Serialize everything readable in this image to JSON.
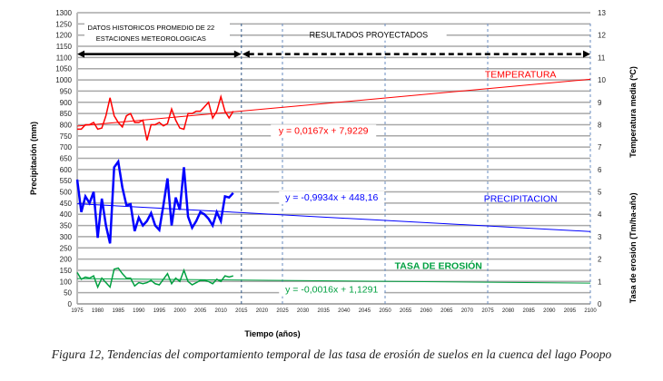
{
  "chart_data": {
    "type": "line",
    "xlabel": "Tiempo (años)",
    "ylabel": "Precipitación (mm)",
    "y2label_top": "Temperatura media (ºC)",
    "y2label_bottom": "Tasa de erosión (Tm/ha-año)",
    "xlim": [
      1975,
      2100
    ],
    "ylim": [
      0,
      1300
    ],
    "y2lim": [
      0,
      13
    ],
    "x_ticks": [
      1975,
      1980,
      1985,
      1990,
      1995,
      2000,
      2005,
      2010,
      2015,
      2020,
      2025,
      2030,
      2035,
      2040,
      2045,
      2050,
      2055,
      2060,
      2065,
      2070,
      2075,
      2080,
      2085,
      2090,
      2095,
      2100
    ],
    "y_ticks": [
      0,
      50,
      100,
      150,
      200,
      250,
      300,
      350,
      400,
      450,
      500,
      550,
      600,
      650,
      700,
      750,
      800,
      850,
      900,
      950,
      1000,
      1050,
      1100,
      1150,
      1200,
      1250,
      1300
    ],
    "y2_ticks": [
      0,
      1,
      2,
      3,
      4,
      5,
      6,
      7,
      8,
      9,
      10,
      11,
      12,
      13
    ],
    "projection_lines": [
      2015,
      2025,
      2050,
      2075,
      2100
    ],
    "annotations": {
      "historic": "DATOS HISTORICOS PROMEDIO DE 22 ESTACIONES METEOROLOGICAS",
      "historic_line1": "DATOS HISTORICOS PROMEDIO DE 22",
      "historic_line2": "ESTACIONES METEOROLOGICAS",
      "projected": "RESULTADOS PROYECTADOS"
    },
    "x_years_start": 1975,
    "series": [
      {
        "name": "TEMPERATURA",
        "axis": "right",
        "color": "#ff0000",
        "equation": "y = 0,0167x + 7,9229",
        "trend": {
          "slope": 0.0167,
          "intercept": 7.9229
        },
        "values": [
          7.8,
          7.8,
          8.0,
          8.0,
          8.1,
          7.8,
          7.85,
          8.4,
          9.2,
          8.4,
          8.1,
          7.9,
          8.4,
          8.5,
          8.1,
          8.1,
          8.2,
          7.3,
          8.0,
          8.0,
          8.1,
          7.95,
          8.05,
          8.7,
          8.2,
          7.85,
          7.8,
          8.5,
          8.5,
          8.6,
          8.6,
          8.8,
          9.0,
          8.3,
          8.6,
          9.25,
          8.6,
          8.3,
          8.6
        ]
      },
      {
        "name": "PRECIPITACION",
        "axis": "left",
        "color": "#0000ff",
        "equation": "y = -0,9934x + 448,16",
        "trend": {
          "slope": -0.9934,
          "intercept": 448.16
        },
        "values": [
          555,
          410,
          480,
          450,
          500,
          295,
          470,
          350,
          270,
          610,
          635,
          520,
          440,
          445,
          325,
          385,
          350,
          370,
          405,
          350,
          330,
          440,
          560,
          350,
          475,
          420,
          610,
          390,
          340,
          370,
          410,
          400,
          380,
          350,
          410,
          370,
          480,
          475,
          495
        ]
      },
      {
        "name": "TASA DE EROSIÓN",
        "axis": "right",
        "color": "#00a040",
        "equation": "y = -0,0016x + 1,1291",
        "trend": {
          "slope": -0.0016,
          "intercept": 1.1291
        },
        "values": [
          1.4,
          1.1,
          1.2,
          1.15,
          1.25,
          0.75,
          1.15,
          0.95,
          0.75,
          1.55,
          1.6,
          1.35,
          1.15,
          1.15,
          0.8,
          0.95,
          0.9,
          0.95,
          1.05,
          0.9,
          0.85,
          1.1,
          1.35,
          0.9,
          1.15,
          1.0,
          1.5,
          1.0,
          0.85,
          0.95,
          1.05,
          1.05,
          1.0,
          0.9,
          1.1,
          1.0,
          1.25,
          1.2,
          1.25
        ]
      }
    ]
  },
  "caption": "Figura 12, Tendencias del comportamiento temporal de las tasa de erosión de suelos en la cuenca del lago Poopo"
}
